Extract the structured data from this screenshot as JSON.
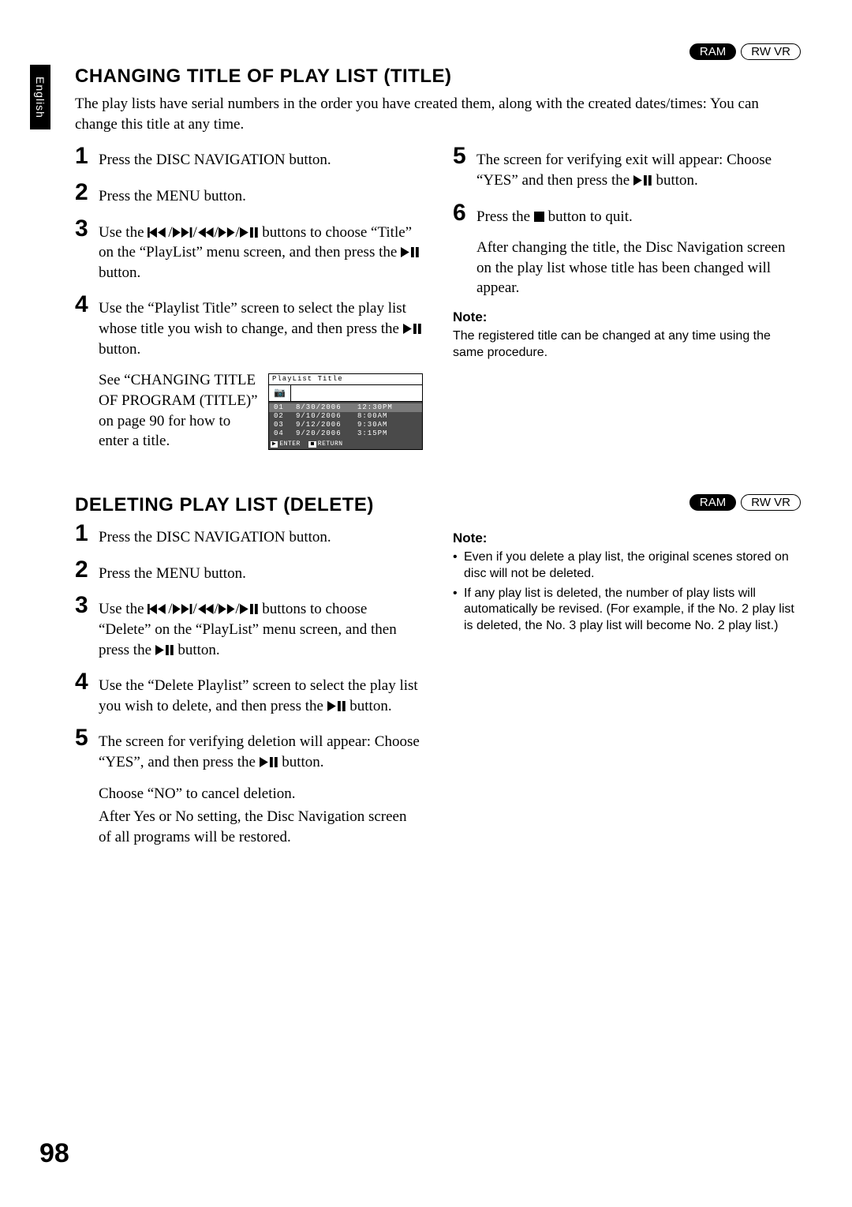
{
  "page": {
    "language_tab": "English",
    "number": "98"
  },
  "badges": {
    "ram": "RAM",
    "rwvr": "RW VR"
  },
  "section1": {
    "heading": "CHANGING TITLE OF PLAY LIST (TITLE)",
    "intro": "The play lists have serial numbers in the order you have created them, along with the created dates/times: You can change this title at any time.",
    "step1": "Press the DISC NAVIGATION button.",
    "step2": "Press the MENU button.",
    "step3_a": "Use the ",
    "step3_b": " buttons to choose “Title” on the “PlayList” menu screen, and then press the ",
    "step3_c": " button.",
    "step4_a": "Use the “Playlist Title” screen to select the play list whose title you wish to change, and then press the ",
    "step4_b": " button.",
    "reference": "See “CHANGING TITLE OF PROGRAM (TITLE)” on page 90 for how to enter a title.",
    "step5_a": "The screen for verifying exit will appear: Choose “YES” and then press the ",
    "step5_b": " button.",
    "step6_a": "Press the ",
    "step6_b": " button to quit.",
    "after": "After changing the title, the Disc Navigation screen on the play list whose title has been changed will appear.",
    "note_head": "Note:",
    "note_text": "The registered title can be changed at any time using the same procedure."
  },
  "playlist_screenshot": {
    "title": "PlayList Title",
    "rows": [
      {
        "num": "01",
        "date": "8/30/2006",
        "time": "12:30PM",
        "highlight": true
      },
      {
        "num": "02",
        "date": "9/10/2006",
        "time": "8:00AM",
        "highlight": false
      },
      {
        "num": "03",
        "date": "9/12/2006",
        "time": "9:30AM",
        "highlight": false
      },
      {
        "num": "04",
        "date": "9/20/2006",
        "time": "3:15PM",
        "highlight": false
      }
    ],
    "footer_enter": "ENTER",
    "footer_return": "RETURN"
  },
  "section2": {
    "heading": "DELETING PLAY LIST (DELETE)",
    "step1": "Press the DISC NAVIGATION button.",
    "step2": "Press the MENU button.",
    "step3_a": "Use the ",
    "step3_b": " buttons to choose “Delete” on the “PlayList” menu screen, and then press the ",
    "step3_c": " button.",
    "step4_a": "Use the “Delete Playlist” screen to select the play list you wish to delete, and then press the ",
    "step4_b": " button.",
    "step5_a": "The screen for verifying deletion will appear: Choose “YES”, and then press the ",
    "step5_b": " button.",
    "choose_no": "Choose “NO” to cancel deletion.",
    "after": "After Yes or No setting, the Disc Navigation screen of all programs will be restored.",
    "note_head": "Note:",
    "note_bullet1": "Even if you delete a play list, the original scenes stored on disc will not be deleted.",
    "note_bullet2": "If any play list is deleted, the number of play lists will automatically be revised. (For example, if the No. 2 play list is deleted, the No. 3 play list will become No. 2 play list.)"
  }
}
